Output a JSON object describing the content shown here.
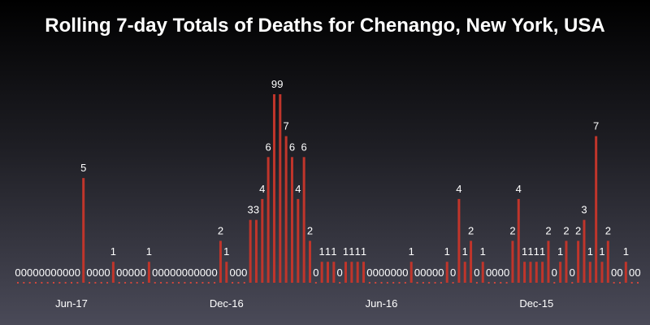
{
  "chart_data": {
    "type": "bar",
    "title": "Rolling 7-day Totals of Deaths for Chenango, New York, USA",
    "xlabel": "",
    "ylabel": "",
    "ylim": [
      0,
      9
    ],
    "grid": false,
    "x_ticks": [
      {
        "label": "Jun-17",
        "index": 9
      },
      {
        "label": "Dec-16",
        "index": 35
      },
      {
        "label": "Jun-16",
        "index": 61
      },
      {
        "label": "Dec-15",
        "index": 87
      }
    ],
    "values": [
      0,
      0,
      0,
      0,
      0,
      0,
      0,
      0,
      0,
      0,
      0,
      5,
      0,
      0,
      0,
      0,
      1,
      0,
      0,
      0,
      0,
      0,
      1,
      0,
      0,
      0,
      0,
      0,
      0,
      0,
      0,
      0,
      0,
      0,
      2,
      1,
      0,
      0,
      0,
      3,
      3,
      4,
      6,
      9,
      9,
      7,
      6,
      4,
      6,
      2,
      0,
      1,
      1,
      1,
      0,
      1,
      1,
      1,
      1,
      0,
      0,
      0,
      0,
      0,
      0,
      0,
      1,
      0,
      0,
      0,
      0,
      0,
      1,
      0,
      4,
      1,
      2,
      0,
      1,
      0,
      0,
      0,
      0,
      2,
      4,
      1,
      1,
      1,
      1,
      2,
      0,
      1,
      2,
      0,
      2,
      3,
      1,
      7,
      1,
      2,
      0,
      0,
      1,
      0,
      0
    ],
    "bar_color": "#c0352b",
    "zero_marker_color": "#d0473d",
    "label_color": "#ffffff",
    "tick_color": "#ffffff"
  }
}
